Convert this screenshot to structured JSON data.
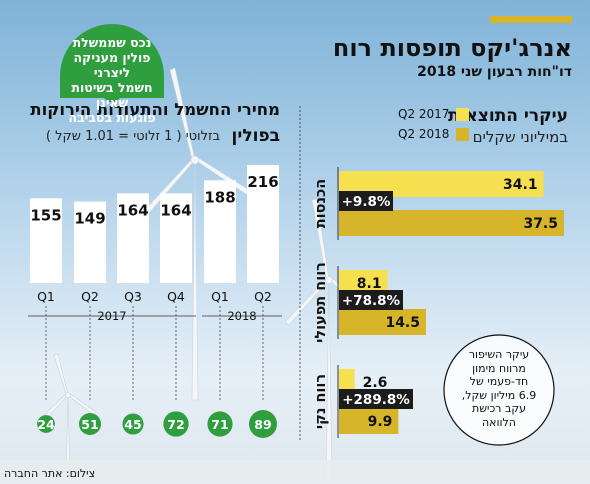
{
  "header": {
    "title": "אנרג'יקס תופסות רוח",
    "subtitle": "דו\"חות רבעון שני 2018"
  },
  "right_panel": {
    "title": "עיקרי התוצאות",
    "subtitle": "במיליוני שקלים",
    "legend": [
      "Q2 2017",
      "Q2 2018"
    ]
  },
  "left_panel": {
    "title_line1": "מחירי החשמל והתעודות הירוקות",
    "title_line2": "בפולין",
    "title_line2_note": "בזלוטי ( 1 זלוטי = 1.01 שקל )",
    "bubble_lines": [
      "נכס שממשלת",
      "פולין מעניקה ליצרני",
      "חשמל בשיטות שאינן",
      "פוגעות בסביבה"
    ]
  },
  "note": {
    "lines": [
      "עיקר השיפור",
      "מרווח מימון",
      "חד-פעמי של",
      "6.9 מיליון שקל,",
      "עקב רכישת",
      "הלוואה"
    ]
  },
  "footer": {
    "credit": "צילום: אתר החברה"
  },
  "colors": {
    "q2_2017": "#f7e04f",
    "q2_2018": "#d6b52a",
    "green": "#2e9e3f",
    "dark": "#1c1c1c"
  },
  "chart_data": [
    {
      "type": "bar",
      "categories": [
        "הכנסות",
        "רווח תפעולי",
        "רווח נקי"
      ],
      "series": [
        {
          "name": "Q2 2017",
          "values": [
            34.1,
            8.1,
            2.6
          ]
        },
        {
          "name": "Q2 2018",
          "values": [
            37.5,
            14.5,
            9.9
          ]
        }
      ],
      "change_labels": [
        "+9.8%",
        "+78.8%",
        "+289.8%"
      ],
      "orientation": "horizontal"
    },
    {
      "type": "bar",
      "quarters": [
        "Q1",
        "Q2",
        "Q3",
        "Q4",
        "Q1",
        "Q2"
      ],
      "years": [
        "2017",
        "2018"
      ],
      "electricity_price": [
        155,
        149,
        164,
        164,
        188,
        216
      ],
      "green_certificates": [
        24,
        51,
        45,
        72,
        71,
        89
      ]
    }
  ]
}
